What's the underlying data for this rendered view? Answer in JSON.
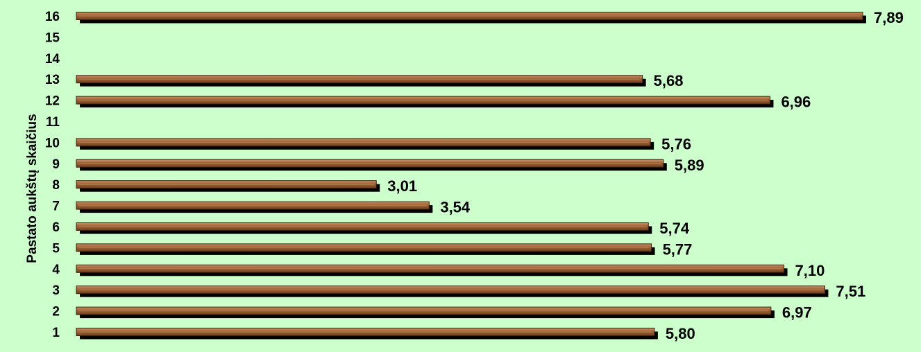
{
  "chart_data": {
    "type": "bar",
    "orientation": "horizontal",
    "ylabel": "Pastato aukštų skaičius",
    "xlabel": "",
    "title": "",
    "categories": [
      "1",
      "2",
      "3",
      "4",
      "5",
      "6",
      "7",
      "8",
      "9",
      "10",
      "11",
      "12",
      "13",
      "14",
      "15",
      "16"
    ],
    "values": [
      5.8,
      6.97,
      7.51,
      7.1,
      5.77,
      5.74,
      3.54,
      3.01,
      5.89,
      5.76,
      null,
      6.96,
      5.68,
      null,
      null,
      7.89
    ],
    "value_labels": [
      "5,80",
      "6,97",
      "7,51",
      "7,10",
      "5,77",
      "5,74",
      "3,54",
      "3,01",
      "5,89",
      "5,76",
      "",
      "6,96",
      "5,68",
      "",
      "",
      "7,89"
    ],
    "xlim": [
      0,
      7.89
    ],
    "grid": false,
    "legend": "none",
    "colors": {
      "background": "#ccffcc",
      "bar_light": "#c08a5c",
      "bar_mid": "#9a6135",
      "bar_dark": "#6b3f1f",
      "bar_shadow": "#000000"
    }
  }
}
